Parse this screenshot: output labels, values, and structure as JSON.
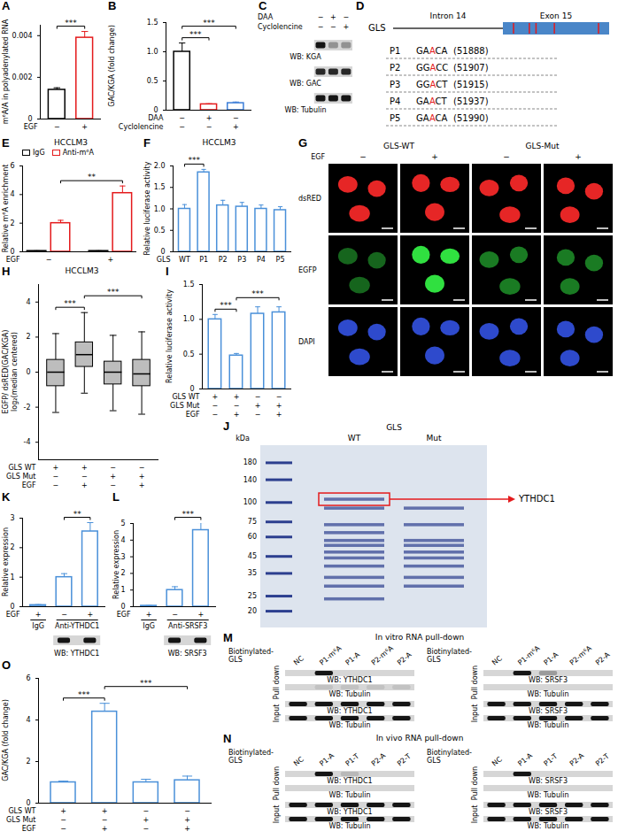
{
  "chart_data": [
    {
      "panel": "A",
      "type": "bar",
      "ylabel": "m⁶A/A in polyadenylated RNA",
      "ylim": [
        0,
        0.0045
      ],
      "yticks": [
        0,
        0.002,
        0.004
      ],
      "values": [
        0.0014,
        0.0039
      ],
      "errors": [
        0.0001,
        0.0003
      ],
      "colors": [
        "#000000",
        "#e41a1c"
      ],
      "conditions": [
        {
          "name": "EGF",
          "values": [
            "−",
            "+"
          ]
        }
      ],
      "brackets": [
        {
          "from": 0,
          "to": 1,
          "label": "***"
        }
      ]
    },
    {
      "panel": "B",
      "type": "bar",
      "ylabel": "GAC/KGA (fold change)",
      "ylim": [
        0,
        1.5
      ],
      "yticks": [
        0,
        0.5,
        {
          "value": 1,
          "label": "1.0"
        },
        1.5
      ],
      "values": [
        1.0,
        0.1,
        0.12
      ],
      "errors": [
        0.15,
        0.01,
        0.02
      ],
      "colors": [
        "#000000",
        "#e41a1c",
        "#3b7dd8"
      ],
      "conditions": [
        {
          "name": "DAA",
          "values": [
            "−",
            "+",
            "−"
          ]
        },
        {
          "name": "Cyclolencine",
          "values": [
            "−",
            "−",
            "+"
          ]
        }
      ],
      "brackets": [
        {
          "from": 0,
          "to": 1,
          "label": "***"
        },
        {
          "from": 0,
          "to": 2,
          "label": "***"
        }
      ]
    },
    {
      "panel": "E",
      "type": "bar",
      "title": "HCCLM3",
      "ylabel": "Relative m⁶A enrichment",
      "ylim": [
        0,
        6
      ],
      "yticks": [
        0,
        2,
        4,
        6
      ],
      "legend": "top",
      "series": [
        {
          "name": "IgG",
          "color": "#000000",
          "values": [
            0.05,
            0.05
          ],
          "errors": [
            0.02,
            0.02
          ]
        },
        {
          "name": "Anti-m⁶A",
          "color": "#e41a1c",
          "values": [
            2.0,
            4.1
          ],
          "errors": [
            0.2,
            0.5
          ]
        }
      ],
      "conditions": [
        {
          "name": "EGF",
          "values": [
            "−",
            "+"
          ]
        }
      ],
      "brackets": [
        {
          "from": 1,
          "to": 3,
          "label": "**"
        }
      ]
    },
    {
      "panel": "F",
      "type": "bar",
      "title": "HCCLM3",
      "ylabel": "Relative luciferase activity",
      "ylim": [
        0,
        2
      ],
      "yticks": [
        0,
        0.5,
        {
          "value": 1,
          "label": "1.0"
        },
        1.5,
        {
          "value": 2,
          "label": "2.0"
        }
      ],
      "values": [
        1.0,
        1.85,
        1.08,
        1.05,
        1.0,
        0.97
      ],
      "errors": [
        0.1,
        0.07,
        0.12,
        0.1,
        0.09,
        0.08
      ],
      "color": "#4a90d9",
      "conditions": [
        {
          "name": "GLS",
          "values": [
            "WT",
            "P1",
            "P2",
            "P3",
            "P4",
            "P5"
          ]
        }
      ],
      "brackets": [
        {
          "from": 0,
          "to": 1,
          "label": "***"
        }
      ]
    },
    {
      "panel": "H",
      "type": "box",
      "title": "HCCLM3",
      "ylabel": [
        "EGFP/ dsRED(GAC/KGA)",
        "log₂(median centered)"
      ],
      "ylim": [
        -5,
        5
      ],
      "yticks": [
        -4,
        -2,
        0,
        2,
        4
      ],
      "color": "#bdbdbd",
      "boxes": [
        {
          "min": -2.3,
          "q1": -0.8,
          "median": 0,
          "q3": 0.7,
          "max": 2.2
        },
        {
          "min": -1.2,
          "q1": 0.3,
          "median": 1.0,
          "q3": 1.7,
          "max": 3.4
        },
        {
          "min": -2.2,
          "q1": -0.7,
          "median": 0,
          "q3": 0.6,
          "max": 2.1
        },
        {
          "min": -2.4,
          "q1": -0.8,
          "median": -0.1,
          "q3": 0.7,
          "max": 2.3
        }
      ],
      "conditions": [
        {
          "name": "GLS WT",
          "values": [
            "+",
            "+",
            "−",
            "−"
          ]
        },
        {
          "name": "GLS Mut",
          "values": [
            "−",
            "−",
            "+",
            "+"
          ]
        },
        {
          "name": "EGF",
          "values": [
            "−",
            "+",
            "−",
            "+"
          ]
        }
      ],
      "brackets": [
        {
          "from": 0,
          "to": 1,
          "label": "***"
        },
        {
          "from": 1,
          "to": 3,
          "label": "***"
        }
      ]
    },
    {
      "panel": "I",
      "type": "bar",
      "ylabel": "Relative luciferase activity",
      "ylim": [
        0,
        1.5
      ],
      "yticks": [
        0,
        0.5,
        {
          "value": 1,
          "label": "1.0"
        },
        1.5
      ],
      "values": [
        1.0,
        0.48,
        1.08,
        1.1
      ],
      "errors": [
        0.07,
        0.03,
        0.1,
        0.08
      ],
      "color": "#4a90d9",
      "conditions": [
        {
          "name": "GLS WT",
          "values": [
            "+",
            "+",
            "−",
            "−"
          ]
        },
        {
          "name": "GLS Mut",
          "values": [
            "−",
            "−",
            "+",
            "+"
          ]
        },
        {
          "name": "EGF",
          "values": [
            "−",
            "+",
            "−",
            "+"
          ]
        }
      ],
      "brackets": [
        {
          "from": 0,
          "to": 1,
          "label": "***"
        },
        {
          "from": 1,
          "to": 3,
          "label": "***"
        }
      ]
    },
    {
      "panel": "K",
      "type": "bar",
      "ylabel": "Relative expression",
      "ylim": [
        0,
        3
      ],
      "yticks": [
        0,
        1,
        2,
        3
      ],
      "values": [
        0.05,
        1.0,
        2.55
      ],
      "errors": [
        0.02,
        0.12,
        0.3
      ],
      "color": "#4a90d9",
      "conditions": [
        {
          "name": "EGF",
          "values": [
            "+",
            "−",
            "+"
          ]
        }
      ],
      "groups": [
        {
          "label": "IgG",
          "from": 0,
          "to": 0
        },
        {
          "label": "Anti-YTHDC1",
          "from": 1,
          "to": 2
        }
      ],
      "brackets": [
        {
          "from": 1,
          "to": 2,
          "label": "**"
        }
      ],
      "blot": {
        "label": "WB: YTHDC1",
        "bands": [
          null,
          1,
          1
        ]
      }
    },
    {
      "panel": "L",
      "type": "bar",
      "ylabel": "Relative expression",
      "ylim": [
        0,
        5
      ],
      "yticks": [
        0,
        1,
        2,
        3,
        4,
        5
      ],
      "values": [
        0.05,
        1.0,
        4.6
      ],
      "errors": [
        0.02,
        0.2,
        0.45
      ],
      "color": "#4a90d9",
      "conditions": [
        {
          "name": "EGF",
          "values": [
            "+",
            "−",
            "+"
          ]
        }
      ],
      "groups": [
        {
          "label": "IgG",
          "from": 0,
          "to": 0
        },
        {
          "label": "Anti-SRSF3",
          "from": 1,
          "to": 2
        }
      ],
      "brackets": [
        {
          "from": 1,
          "to": 2,
          "label": "***"
        }
      ],
      "blot": {
        "label": "WB: SRSF3",
        "bands": [
          null,
          1,
          1
        ]
      }
    },
    {
      "panel": "O",
      "type": "bar",
      "ylabel": "GAC/KGA (fold change)",
      "ylim": [
        0,
        6
      ],
      "yticks": [
        0,
        2,
        4,
        6
      ],
      "values": [
        1.0,
        4.4,
        1.0,
        1.1
      ],
      "errors": [
        0.06,
        0.4,
        0.15,
        0.2
      ],
      "color": "#4a90d9",
      "conditions": [
        {
          "name": "GLS WT",
          "values": [
            "+",
            "+",
            "−",
            "−"
          ]
        },
        {
          "name": "GLS Mut",
          "values": [
            "−",
            "−",
            "+",
            "+"
          ]
        },
        {
          "name": "EGF",
          "values": [
            "−",
            "+",
            "−",
            "+"
          ]
        }
      ],
      "brackets": [
        {
          "from": 0,
          "to": 1,
          "label": "***"
        },
        {
          "from": 1,
          "to": 3,
          "label": "***"
        }
      ]
    }
  ],
  "blot": {
    "panel": "C",
    "conditions": [
      {
        "name": "DAA",
        "values": [
          "−",
          "+",
          "−"
        ]
      },
      {
        "name": "Cyclolencine",
        "values": [
          "−",
          "−",
          "+"
        ]
      }
    ],
    "rows": [
      {
        "label": "WB: KGA",
        "bands": [
          1,
          0.35,
          0.35
        ]
      },
      {
        "label": "WB: GAC",
        "bands": [
          0.9,
          0.9,
          0.9
        ]
      },
      {
        "label": "WB: Tubulin",
        "bands": [
          1,
          1,
          1
        ]
      }
    ]
  },
  "diagram": {
    "panel": "D",
    "gene": "GLS",
    "intron": "Intron 14",
    "exon": "Exon 15",
    "sites": [
      {
        "name": "P1",
        "sequence": "GAACA",
        "position": 51888,
        "label": "(51888)"
      },
      {
        "name": "P2",
        "sequence": "GGACC",
        "position": 51907,
        "label": "(51907)"
      },
      {
        "name": "P3",
        "sequence": "GGACT",
        "position": 51915,
        "label": "(51915)"
      },
      {
        "name": "P4",
        "sequence": "GAACT",
        "position": 51937,
        "label": "(51937)"
      },
      {
        "name": "P5",
        "sequence": "GAACA",
        "position": 51990,
        "label": "(51990)"
      }
    ]
  },
  "images": {
    "panel": "G",
    "groups": [
      {
        "label": "GLS-WT"
      },
      {
        "label": "GLS-Mut"
      }
    ],
    "condition": {
      "name": "EGF",
      "values": [
        "−",
        "+",
        "−",
        "+"
      ]
    },
    "rows": [
      "dsRED",
      "EGFP",
      "DAPI"
    ],
    "channel_colors": [
      "#ff2a2a",
      "#30e040",
      "#3a5cff"
    ],
    "intensity": [
      [
        0.9,
        0.9,
        0.9,
        0.9
      ],
      [
        0.45,
        1,
        0.55,
        0.55
      ],
      [
        0.8,
        0.8,
        0.8,
        0.8
      ]
    ]
  },
  "gel": {
    "panel": "J",
    "kda_label": "kDa",
    "markers": [
      180,
      140,
      100,
      75,
      60,
      45,
      35,
      25,
      20
    ],
    "lane_header": "GLS",
    "lanes": [
      "WT",
      "Mut"
    ],
    "bands": [
      [
        105,
        92,
        72,
        64,
        57,
        53,
        48,
        44,
        39,
        33,
        29,
        24
      ],
      [
        92,
        72,
        57,
        53,
        48,
        44,
        39,
        33,
        29
      ]
    ],
    "highlight": {
      "lane": "WT",
      "kDa": 105,
      "label": "YTHDC1"
    }
  },
  "pulldowns": [
    {
      "panel": "M",
      "title": "In vitro RNA pull-down",
      "blots": [
        {
          "lane_header": "Biotinylated-GLS",
          "lanes": [
            "NC",
            "P1-m⁶A",
            "P1-A",
            "P2-m⁶A",
            "P2-A"
          ],
          "sections": [
            {
              "name": "Pull down",
              "rows": [
                {
                  "label": "WB: YTHDC1",
                  "bands": [
                    0,
                    1,
                    0,
                    0,
                    0
                  ]
                },
                {
                  "label": "WB: Tubulin",
                  "bands": [
                    0,
                    0.1,
                    0.1,
                    0.1,
                    0.1
                  ]
                }
              ]
            },
            {
              "name": "Input",
              "rows": [
                {
                  "label": "WB: YTHDC1",
                  "bands": [
                    1,
                    1,
                    1,
                    1,
                    1
                  ]
                },
                {
                  "label": "WB: Tubulin",
                  "bands": [
                    1,
                    1,
                    1,
                    1,
                    1
                  ]
                }
              ]
            }
          ]
        },
        {
          "lane_header": "Biotinylated-GLS",
          "lanes": [
            "NC",
            "P1-m⁶A",
            "P1-A",
            "P2-m⁶A",
            "P2-A"
          ],
          "sections": [
            {
              "name": "Pull down",
              "rows": [
                {
                  "label": "WB: SRSF3",
                  "bands": [
                    0,
                    1,
                    0.3,
                    0,
                    0
                  ]
                },
                {
                  "label": "WB: Tubulin",
                  "bands": [
                    0,
                    0,
                    0,
                    0,
                    0
                  ]
                }
              ]
            },
            {
              "name": "Input",
              "rows": [
                {
                  "label": "WB: SRSF3",
                  "bands": [
                    1,
                    1,
                    1,
                    1,
                    1
                  ]
                },
                {
                  "label": "WB: Tubulin",
                  "bands": [
                    1,
                    1,
                    1,
                    1,
                    1
                  ]
                }
              ]
            }
          ]
        }
      ]
    },
    {
      "panel": "N",
      "title": "In vivo RNA pull-down",
      "blots": [
        {
          "lane_header": "Biotinylated-GLS",
          "lanes": [
            "NC",
            "P1-A",
            "P1-T",
            "P2-A",
            "P2-T"
          ],
          "sections": [
            {
              "name": "Pull down",
              "rows": [
                {
                  "label": "WB: YTHDC1",
                  "bands": [
                    0,
                    1,
                    0.15,
                    0,
                    0
                  ]
                },
                {
                  "label": "WB: Tubulin",
                  "bands": [
                    0,
                    0,
                    0,
                    0,
                    0
                  ]
                }
              ]
            },
            {
              "name": "Input",
              "rows": [
                {
                  "label": "WB: YTHDC1",
                  "bands": [
                    1,
                    1,
                    1,
                    1,
                    1
                  ]
                },
                {
                  "label": "WB: Tubulin",
                  "bands": [
                    1,
                    1,
                    1,
                    1,
                    1
                  ]
                }
              ]
            }
          ]
        },
        {
          "lane_header": "Biotinylated-GLS",
          "lanes": [
            "NC",
            "P1-A",
            "P1-T",
            "P2-A",
            "P2-T"
          ],
          "sections": [
            {
              "name": "Pull down",
              "rows": [
                {
                  "label": "WB: SRSF3",
                  "bands": [
                    0,
                    1,
                    0,
                    0,
                    0
                  ]
                },
                {
                  "label": "WB: Tubulin",
                  "bands": [
                    0,
                    0,
                    0,
                    0,
                    0
                  ]
                }
              ]
            },
            {
              "name": "Input",
              "rows": [
                {
                  "label": "WB: SRSF3",
                  "bands": [
                    1,
                    1,
                    1,
                    1,
                    1
                  ]
                },
                {
                  "label": "WB: Tubulin",
                  "bands": [
                    1,
                    1,
                    1,
                    1,
                    1
                  ]
                }
              ]
            }
          ]
        }
      ]
    }
  ]
}
